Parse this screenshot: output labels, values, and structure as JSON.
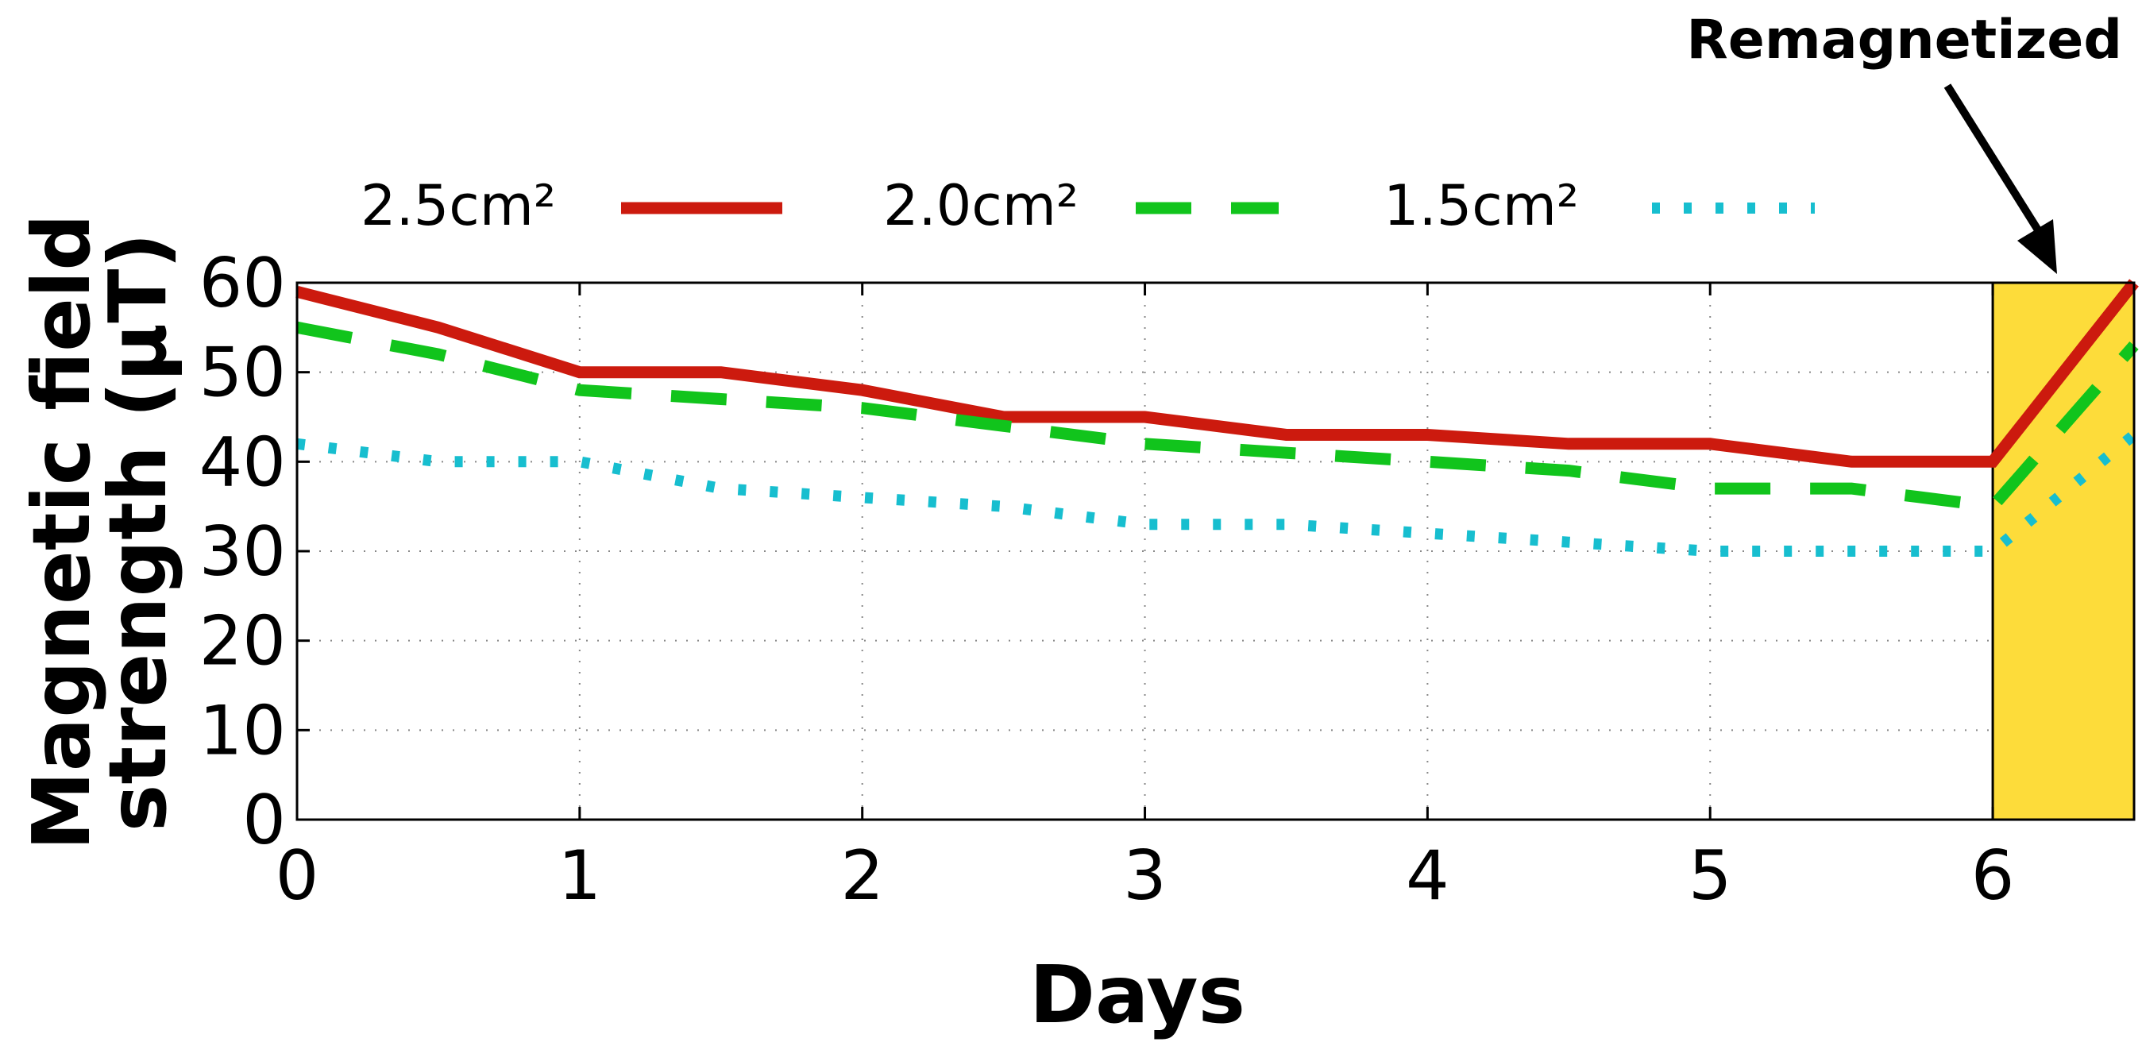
{
  "chart_data": {
    "type": "line",
    "xlabel": "Days",
    "ylabel": "Magnetic field strength (μT)",
    "ylabel_lines": [
      "Magnetic field",
      "strength (μT)"
    ],
    "xlim": [
      0,
      6.5
    ],
    "ylim": [
      0,
      60
    ],
    "x_ticks": [
      0,
      1,
      2,
      3,
      4,
      5,
      6
    ],
    "y_ticks": [
      0,
      10,
      20,
      30,
      40,
      50,
      60
    ],
    "grid": true,
    "legend_position": "top",
    "series": [
      {
        "name": "2.5cm²",
        "style": "solid",
        "color": "#cc1a0e",
        "x": [
          0,
          0.5,
          1,
          1.5,
          2,
          2.5,
          3,
          3.5,
          4,
          4.5,
          5,
          5.5,
          6,
          6.5
        ],
        "y": [
          59,
          55,
          50,
          50,
          48,
          45,
          45,
          43,
          43,
          42,
          42,
          40,
          40,
          60
        ]
      },
      {
        "name": "2.0cm²",
        "style": "dashed",
        "color": "#11c41c",
        "x": [
          0,
          0.5,
          1,
          1.5,
          2,
          2.5,
          3,
          3.5,
          4,
          4.5,
          5,
          5.5,
          6,
          6.5
        ],
        "y": [
          55,
          52,
          48,
          47,
          46,
          44,
          42,
          41,
          40,
          39,
          37,
          37,
          35,
          53
        ]
      },
      {
        "name": "1.5cm²",
        "style": "dotted",
        "color": "#17becf",
        "x": [
          0,
          0.5,
          1,
          1.5,
          2,
          2.5,
          3,
          3.5,
          4,
          4.5,
          5,
          5.5,
          6,
          6.5
        ],
        "y": [
          42,
          40,
          40,
          37,
          36,
          35,
          33,
          33,
          32,
          31,
          30,
          30,
          30,
          43
        ]
      }
    ],
    "highlight_region": {
      "x_start": 6,
      "x_end": 6.5,
      "color": "#fddc3a"
    },
    "annotation": {
      "text": "Remagnetized",
      "points_to_x": 6.25
    }
  }
}
